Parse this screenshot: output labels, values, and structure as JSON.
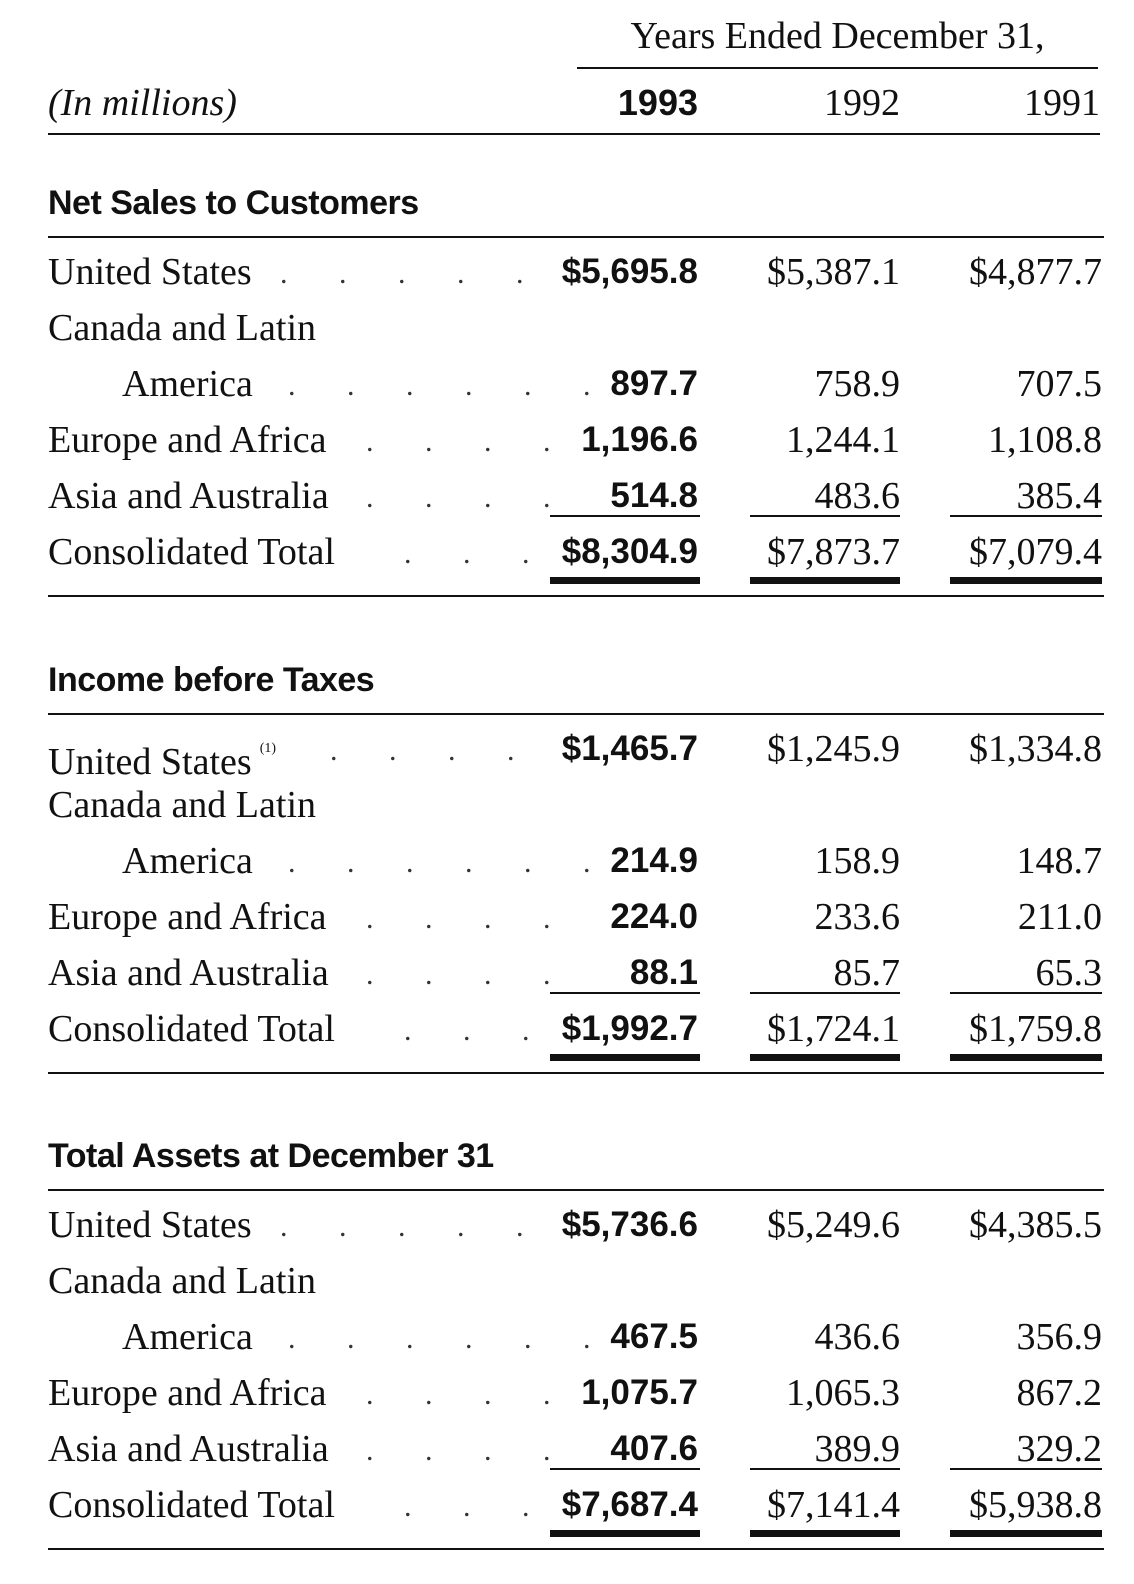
{
  "header": {
    "years_caption": "Years Ended December 31,",
    "unit": "(In millions)",
    "year_1": "1993",
    "year_2": "1992",
    "year_3": "1991"
  },
  "sections": [
    {
      "title": "Net Sales to Customers",
      "rows": [
        {
          "label": "United States",
          "v1": "$5,695.8",
          "v2": "$5,387.1",
          "v3": "$4,877.7"
        },
        {
          "label": "Canada and Latin",
          "label_cont": "America",
          "v1": "897.7",
          "v2": "758.9",
          "v3": "707.5"
        },
        {
          "label": "Europe and Africa",
          "v1": "1,196.6",
          "v2": "1,244.1",
          "v3": "1,108.8"
        },
        {
          "label": "Asia and Australia",
          "v1": "514.8",
          "v2": "483.6",
          "v3": "385.4"
        },
        {
          "label": "Consolidated Total",
          "v1": "$8,304.9",
          "v2": "$7,873.7",
          "v3": "$7,079.4"
        }
      ]
    },
    {
      "title": "Income before Taxes",
      "rows": [
        {
          "label": "United States",
          "footnote": "(1)",
          "v1": "$1,465.7",
          "v2": "$1,245.9",
          "v3": "$1,334.8"
        },
        {
          "label": "Canada and Latin",
          "label_cont": "America",
          "v1": "214.9",
          "v2": "158.9",
          "v3": "148.7"
        },
        {
          "label": "Europe and Africa",
          "v1": "224.0",
          "v2": "233.6",
          "v3": "211.0"
        },
        {
          "label": "Asia and Australia",
          "v1": "88.1",
          "v2": "85.7",
          "v3": "65.3"
        },
        {
          "label": "Consolidated Total",
          "v1": "$1,992.7",
          "v2": "$1,724.1",
          "v3": "$1,759.8"
        }
      ]
    },
    {
      "title": "Total Assets at December 31",
      "rows": [
        {
          "label": "United States",
          "v1": "$5,736.6",
          "v2": "$5,249.6",
          "v3": "$4,385.5"
        },
        {
          "label": "Canada and Latin",
          "label_cont": "America",
          "v1": "467.5",
          "v2": "436.6",
          "v3": "356.9"
        },
        {
          "label": "Europe and Africa",
          "v1": "1,075.7",
          "v2": "1,065.3",
          "v3": "867.2"
        },
        {
          "label": "Asia and Australia",
          "v1": "407.6",
          "v2": "389.9",
          "v3": "329.2"
        },
        {
          "label": "Consolidated Total",
          "v1": "$7,687.4",
          "v2": "$7,141.4",
          "v3": "$5,938.8"
        }
      ]
    }
  ]
}
